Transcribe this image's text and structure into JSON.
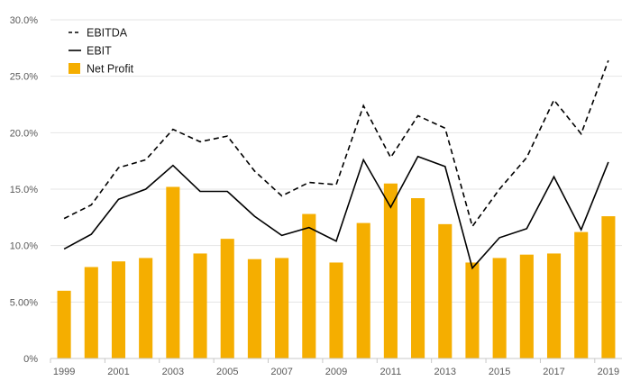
{
  "chart_data": {
    "type": "bar",
    "x": [
      1999,
      2000,
      2001,
      2002,
      2003,
      2004,
      2005,
      2006,
      2007,
      2008,
      2009,
      2010,
      2011,
      2012,
      2013,
      2014,
      2015,
      2016,
      2017,
      2018,
      2019
    ],
    "x_tick_labels": [
      "1999",
      "2001",
      "2003",
      "2005",
      "2007",
      "2009",
      "2011",
      "2013",
      "2015",
      "2017",
      "2019"
    ],
    "y_tick_labels": [
      "0%",
      "5.00%",
      "10.0%",
      "15.0%",
      "20.0%",
      "25.0%",
      "30.0%"
    ],
    "ylim": [
      0,
      30
    ],
    "grid": true,
    "legend_position": "top-left",
    "series": [
      {
        "name": "EBITDA",
        "type": "line",
        "style": "dashed",
        "color": "#000000",
        "values": [
          12.4,
          13.6,
          16.9,
          17.6,
          20.3,
          19.2,
          19.7,
          16.6,
          14.4,
          15.6,
          15.4,
          22.4,
          17.8,
          21.5,
          20.4,
          11.7,
          15.0,
          17.8,
          22.9,
          19.9,
          26.4
        ]
      },
      {
        "name": "EBIT",
        "type": "line",
        "style": "solid",
        "color": "#000000",
        "values": [
          9.7,
          11.0,
          14.1,
          15.0,
          17.1,
          14.8,
          14.8,
          12.6,
          10.9,
          11.6,
          10.4,
          17.6,
          13.4,
          17.9,
          17.0,
          8.0,
          10.7,
          11.5,
          16.1,
          11.4,
          17.4
        ]
      },
      {
        "name": "Net Profit",
        "type": "bar",
        "color": "#F5AE00",
        "values": [
          6.0,
          8.1,
          8.6,
          8.9,
          15.2,
          9.3,
          10.6,
          8.8,
          8.9,
          12.8,
          8.5,
          12.0,
          15.5,
          14.2,
          11.9,
          8.5,
          8.9,
          9.2,
          9.3,
          11.2,
          12.6
        ]
      }
    ]
  }
}
